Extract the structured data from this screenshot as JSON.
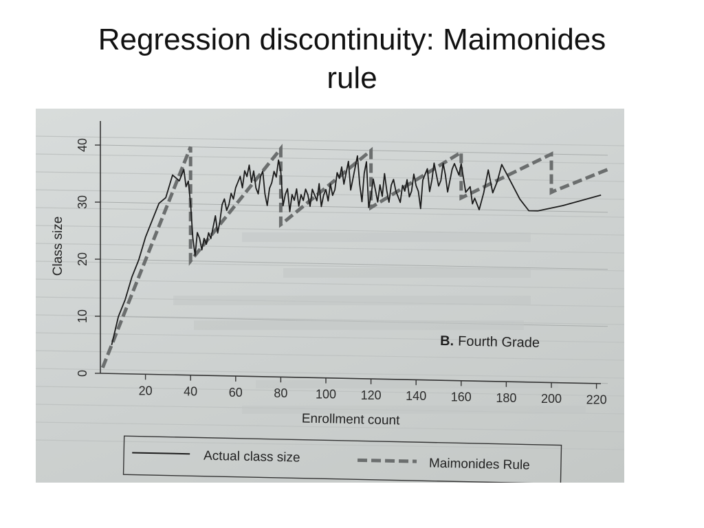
{
  "slide": {
    "title_line1": "Regression discontinuity: Maimonides",
    "title_line2": "rule"
  },
  "chart_data": {
    "type": "line",
    "panel_label_bold": "B.",
    "panel_label": "Fourth Grade",
    "xlabel": "Enrollment count",
    "ylabel": "Class size",
    "xlim": [
      0,
      225
    ],
    "ylim": [
      -2,
      42
    ],
    "x_ticks": [
      20,
      40,
      60,
      80,
      100,
      120,
      140,
      160,
      180,
      200,
      220
    ],
    "y_ticks": [
      0,
      10,
      20,
      30,
      40
    ],
    "grid": true,
    "legend_position": "bottom",
    "series": [
      {
        "name": "Actual class size",
        "color": "#1a1a1a",
        "style": "solid",
        "x": [
          5,
          8,
          11,
          14,
          17,
          20,
          23,
          26,
          29,
          32,
          35,
          37,
          38,
          39,
          40,
          41,
          42,
          43,
          44,
          45,
          46,
          47,
          48,
          49,
          50,
          51,
          52,
          53,
          54,
          55,
          56,
          57,
          58,
          59,
          60,
          61,
          62,
          63,
          64,
          65,
          66,
          67,
          68,
          69,
          70,
          71,
          72,
          73,
          74,
          75,
          76,
          77,
          78,
          79,
          80,
          81,
          82,
          83,
          84,
          85,
          86,
          87,
          88,
          89,
          90,
          91,
          92,
          93,
          94,
          95,
          96,
          97,
          98,
          99,
          100,
          101,
          102,
          103,
          104,
          105,
          106,
          107,
          108,
          109,
          110,
          111,
          112,
          113,
          114,
          115,
          116,
          117,
          118,
          119,
          120,
          121,
          122,
          123,
          124,
          125,
          126,
          127,
          128,
          129,
          130,
          131,
          132,
          133,
          134,
          135,
          136,
          137,
          138,
          139,
          140,
          141,
          142,
          143,
          144,
          145,
          146,
          147,
          148,
          149,
          150,
          151,
          152,
          153,
          154,
          155,
          156,
          157,
          158,
          159,
          160,
          162,
          164,
          165,
          166,
          168,
          170,
          172,
          174,
          176,
          178,
          182,
          186,
          190,
          194,
          205,
          222
        ],
        "y": [
          5,
          10,
          13,
          17,
          20,
          24,
          27,
          30,
          31,
          35,
          34,
          36,
          33,
          34,
          30,
          24,
          21,
          25,
          24,
          22,
          24,
          23,
          25,
          24,
          26,
          28,
          25,
          27,
          30,
          31,
          29,
          30,
          32,
          31,
          33,
          34,
          35,
          33,
          36,
          35,
          37,
          34,
          36,
          33,
          32,
          35,
          36,
          32,
          30,
          33,
          34,
          36,
          35,
          38,
          36,
          30,
          32,
          33,
          29,
          32,
          31,
          33,
          30,
          32,
          31,
          33,
          32,
          30,
          33,
          32,
          31,
          34,
          30,
          32,
          33,
          31,
          34,
          32,
          33,
          36,
          35,
          37,
          34,
          36,
          38,
          33,
          35,
          37,
          39,
          34,
          31,
          36,
          38,
          30,
          32,
          35,
          33,
          31,
          34,
          32,
          36,
          33,
          31,
          34,
          35,
          33,
          32,
          31,
          34,
          33,
          35,
          32,
          33,
          36,
          34,
          33,
          30,
          35,
          36,
          37,
          33,
          35,
          38,
          36,
          34,
          35,
          38,
          36,
          33,
          35,
          37,
          38,
          37,
          36,
          38,
          33,
          34,
          31,
          32,
          30,
          33,
          37,
          33,
          35,
          38,
          35,
          32,
          30,
          30,
          31,
          33
        ]
      },
      {
        "name": "Maimonides Rule",
        "color": "#6b6e6e",
        "style": "dashed",
        "x": [
          1,
          40,
          40.01,
          41,
          80,
          80.01,
          81,
          120,
          120.01,
          121,
          160,
          160.01,
          161,
          200,
          200.01,
          201,
          225
        ],
        "y": [
          1,
          40,
          20,
          20.5,
          40,
          26.7,
          27,
          40,
          30,
          30.25,
          40,
          32,
          32.2,
          40,
          33.3,
          33.5,
          37.5
        ]
      }
    ]
  }
}
